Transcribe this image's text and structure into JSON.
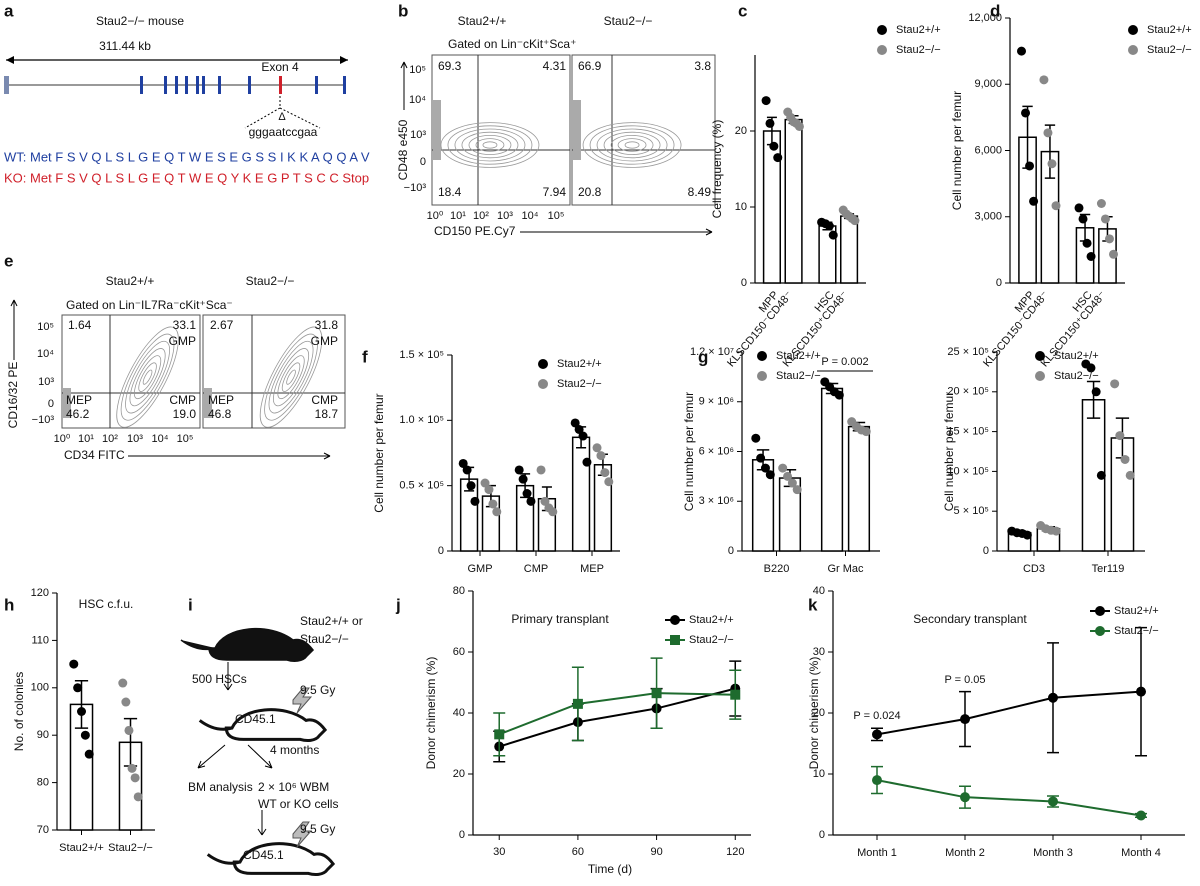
{
  "panel_letters": [
    "a",
    "b",
    "c",
    "d",
    "e",
    "f",
    "g",
    "h",
    "i",
    "j",
    "k"
  ],
  "panel_a": {
    "title": "Stau2−/− mouse",
    "length": "311.44 kb",
    "exon": "Exon 4",
    "deletion": "Δ",
    "sequence": "gggaatccgaa",
    "wt": "WT: Met F S V Q L S L G E Q T W E S E G S S I K K A Q Q A V",
    "ko": "KO: Met F S V Q L S L G E Q T W E Q Y K E G P T S C C Stop"
  },
  "panel_b": {
    "headers": [
      "Stau2+/+",
      "Stau2−/−"
    ],
    "gate": "Gated on Lin⁻cKit⁺Sca⁺",
    "ylabel": "CD48 e450",
    "xlabel": "CD150 PE.Cy7",
    "yticks": [
      "10⁵",
      "10⁴",
      "10³",
      "0",
      "−10³"
    ],
    "xticks": [
      "10⁰",
      "10¹",
      "10²",
      "10³",
      "10⁴",
      "10⁵"
    ],
    "quadrants": [
      [
        "69.3",
        "4.31",
        "18.4",
        "7.94"
      ],
      [
        "66.9",
        "3.8",
        "20.8",
        "8.49"
      ]
    ]
  },
  "panel_e": {
    "headers": [
      "Stau2+/+",
      "Stau2−/−"
    ],
    "gate": "Gated on Lin⁻IL7Ra⁻cKit⁺Sca⁻",
    "ylabel": "CD16/32 PE",
    "xlabel": "CD34 FITC",
    "yticks": [
      "10⁵",
      "10⁴",
      "10³",
      "0",
      "−10³"
    ],
    "xticks": [
      "10⁰",
      "10¹",
      "10²",
      "10³",
      "10⁴",
      "10⁵"
    ],
    "quadrants": [
      [
        "1.64",
        "33.1",
        "GMP",
        "MEP",
        "46.2",
        "CMP",
        "19.0"
      ],
      [
        "2.67",
        "31.8",
        "GMP",
        "MEP",
        "46.8",
        "CMP",
        "18.7"
      ]
    ]
  },
  "panel_i": {
    "donor": [
      "Stau2+/+ or",
      "Stau2−/−"
    ],
    "cells": "500 HSCs",
    "dose": "9.5 Gy",
    "recipient": "CD45.1",
    "time": "4 months",
    "analysis": "BM analysis",
    "transfer": [
      "2 × 10⁶ WBM",
      "WT or KO cells"
    ],
    "dose2": "9.5 Gy",
    "recipient2": "CD45.1"
  },
  "chart_data": [
    {
      "type": "bar",
      "ylabel": "Cell frequency (%)",
      "categories": [
        "MPP",
        "HSC"
      ],
      "category_sublabels": [
        "KLSCD150⁻CD48⁻",
        "KLSCD150⁺CD48⁻"
      ],
      "ylim": [
        0,
        30
      ],
      "yticks": [
        0,
        10,
        20
      ],
      "legend": "upper right",
      "series": [
        {
          "name": "Stau2+/+",
          "color": "#000000",
          "values": [
            20,
            7.5
          ],
          "errors": [
            1.8,
            0.5
          ],
          "points": [
            [
              24,
              21,
              18,
              16.5
            ],
            [
              8,
              7.8,
              7.5,
              6.3
            ]
          ]
        },
        {
          "name": "Stau2−/−",
          "color": "#888888",
          "values": [
            21.5,
            8.8
          ],
          "errors": [
            0.5,
            0.3
          ],
          "points": [
            [
              22.5,
              21.8,
              21.2,
              21,
              20.6
            ],
            [
              9.6,
              9.1,
              8.8,
              8.5,
              8.2
            ]
          ]
        }
      ]
    },
    {
      "type": "bar",
      "ylabel": "Cell number per femur",
      "categories": [
        "MPP",
        "HSC"
      ],
      "category_sublabels": [
        "KLSCD150⁻CD48⁻",
        "KLSCD150⁺CD48⁻"
      ],
      "ylim": [
        0,
        12000
      ],
      "yticks": [
        0,
        {
          "value": 3000,
          "label": "3,000"
        },
        {
          "value": 6000,
          "label": "6,000"
        },
        {
          "value": 9000,
          "label": "9,000"
        },
        {
          "value": 12000,
          "label": "12,000"
        }
      ],
      "legend": "upper right",
      "series": [
        {
          "name": "Stau2+/+",
          "color": "#000000",
          "values": [
            6600,
            2500
          ],
          "errors": [
            1400,
            600
          ],
          "points": [
            [
              10500,
              7700,
              5300,
              3700
            ],
            [
              3400,
              2900,
              1800,
              1200
            ]
          ]
        },
        {
          "name": "Stau2−/−",
          "color": "#888888",
          "values": [
            5950,
            2450
          ],
          "errors": [
            1200,
            550
          ],
          "points": [
            [
              9200,
              6800,
              5400,
              3500
            ],
            [
              3600,
              2900,
              2000,
              1300
            ]
          ]
        }
      ]
    },
    {
      "type": "bar",
      "ylabel": "Cell number per femur",
      "categories": [
        "GMP",
        "CMP",
        "MEP"
      ],
      "ylim": [
        0,
        150000
      ],
      "yticks": [
        0,
        {
          "value": 50000,
          "label": "0.5 × 10⁵"
        },
        {
          "value": 100000,
          "label": "1.0 × 10⁵"
        },
        {
          "value": 150000,
          "label": "1.5 × 10⁵"
        }
      ],
      "legend": "upper right",
      "series": [
        {
          "name": "Stau2+/+",
          "color": "#000000",
          "values": [
            55000,
            50000,
            87000
          ],
          "errors": [
            9000,
            9000,
            8000
          ],
          "points": [
            [
              67000,
              62000,
              50000,
              38000
            ],
            [
              62000,
              55000,
              44000,
              38000
            ],
            [
              98000,
              93000,
              88000,
              68000
            ]
          ]
        },
        {
          "name": "Stau2−/−",
          "color": "#888888",
          "values": [
            42000,
            40000,
            66000
          ],
          "errors": [
            8000,
            9000,
            8000
          ],
          "points": [
            [
              52000,
              47000,
              36000,
              30000
            ],
            [
              62000,
              38000,
              33000,
              30000
            ],
            [
              79000,
              73000,
              60000,
              53000
            ]
          ]
        }
      ]
    },
    {
      "type": "bar",
      "ylabel": "Cell number per femur",
      "categories": [
        "B220",
        "Gr Mac"
      ],
      "annotations": [
        "P = 0.002"
      ],
      "ylim": [
        0,
        12000000
      ],
      "yticks": [
        0,
        {
          "value": 3000000,
          "label": "3 × 10⁶"
        },
        {
          "value": 6000000,
          "label": "6 × 10⁶"
        },
        {
          "value": 9000000,
          "label": "9 × 10⁶"
        },
        {
          "value": 12000000,
          "label": "1.2 × 10⁷"
        }
      ],
      "legend": "upper left",
      "series": [
        {
          "name": "Stau2+/+",
          "color": "#000000",
          "values": [
            5500000,
            9800000
          ],
          "errors": [
            600000,
            300000
          ],
          "points": [
            [
              6800000,
              5600000,
              5000000,
              4600000
            ],
            [
              10200000,
              9900000,
              9600000,
              9400000
            ]
          ]
        },
        {
          "name": "Stau2−/−",
          "color": "#888888",
          "values": [
            4400000,
            7500000
          ],
          "errors": [
            500000,
            250000
          ],
          "points": [
            [
              5000000,
              4500000,
              4100000,
              3700000
            ],
            [
              7800000,
              7500000,
              7300000,
              7200000
            ]
          ]
        }
      ]
    },
    {
      "type": "bar",
      "ylabel": "Cell number per femur",
      "categories": [
        "CD3",
        "Ter119"
      ],
      "ylim": [
        0,
        2500000
      ],
      "yticks": [
        0,
        {
          "value": 500000,
          "label": "5 × 10⁵"
        },
        {
          "value": 1000000,
          "label": "10 × 10⁵"
        },
        {
          "value": 1500000,
          "label": "15 × 10⁵"
        },
        {
          "value": 2000000,
          "label": "20 × 10⁵"
        },
        {
          "value": 2500000,
          "label": "25 × 10⁵"
        }
      ],
      "legend": "upper left",
      "series": [
        {
          "name": "Stau2+/+",
          "color": "#000000",
          "values": [
            230000,
            1900000
          ],
          "errors": [
            20000,
            230000
          ],
          "points": [
            [
              250000,
              230000,
              220000,
              200000
            ],
            [
              2350000,
              2300000,
              2000000,
              950000
            ]
          ]
        },
        {
          "name": "Stau2−/−",
          "color": "#888888",
          "values": [
            280000,
            1420000
          ],
          "errors": [
            25000,
            250000
          ],
          "points": [
            [
              320000,
              280000,
              260000,
              250000
            ],
            [
              2100000,
              1450000,
              1150000,
              950000
            ]
          ]
        }
      ]
    },
    {
      "type": "bar",
      "title": "HSC c.f.u.",
      "ylabel": "No. of colonies",
      "categories": [
        "Stau2+/+",
        "Stau2−/−"
      ],
      "ylim": [
        70,
        120
      ],
      "yticks": [
        70,
        80,
        90,
        100,
        110,
        120
      ],
      "values": [
        96.5,
        88.5
      ],
      "errors": [
        5,
        5
      ],
      "point_colors": [
        "#000000",
        "#888888"
      ],
      "points": [
        [
          105,
          100,
          95,
          90,
          86
        ],
        [
          101,
          97,
          91,
          83,
          81,
          77
        ]
      ]
    },
    {
      "type": "line",
      "title": "Primary transplant",
      "xlabel": "Time (d)",
      "ylabel": "Donor chimerism (%)",
      "x": [
        30,
        60,
        90,
        120
      ],
      "xlim": [
        20,
        126
      ],
      "xticks": [
        30,
        60,
        90,
        120
      ],
      "ylim": [
        0,
        80
      ],
      "yticks": [
        0,
        20,
        40,
        60,
        80
      ],
      "legend": "upper right",
      "series": [
        {
          "name": "Stau2+/+",
          "color": "#000000",
          "marker": "circle",
          "values": [
            29,
            37,
            41.5,
            48
          ],
          "errors": [
            5,
            6,
            6.5,
            9
          ]
        },
        {
          "name": "Stau2−/−",
          "color": "#1e6b2e",
          "marker": "square",
          "values": [
            33,
            43,
            46.5,
            46
          ],
          "errors": [
            7,
            12,
            11.5,
            8
          ]
        }
      ]
    },
    {
      "type": "line",
      "title": "Secondary transplant",
      "ylabel": "Donor chimerism (%)",
      "categories": [
        "Month 1",
        "Month 2",
        "Month 3",
        "Month 4"
      ],
      "ylim": [
        0,
        40
      ],
      "yticks": [
        0,
        10,
        20,
        30,
        40
      ],
      "legend": "upper right",
      "annotations": [
        "P = 0.024",
        "P = 0.05"
      ],
      "series": [
        {
          "name": "Stau2+/+",
          "color": "#000000",
          "marker": "circle",
          "values": [
            16.5,
            19,
            22.5,
            23.5
          ],
          "errors": [
            1,
            4.5,
            9,
            10.5
          ]
        },
        {
          "name": "Stau2−/−",
          "color": "#1e6b2e",
          "marker": "circle",
          "values": [
            9,
            6.2,
            5.5,
            3.2
          ],
          "errors": [
            2.2,
            1.8,
            0.9,
            0.3
          ]
        }
      ]
    }
  ]
}
